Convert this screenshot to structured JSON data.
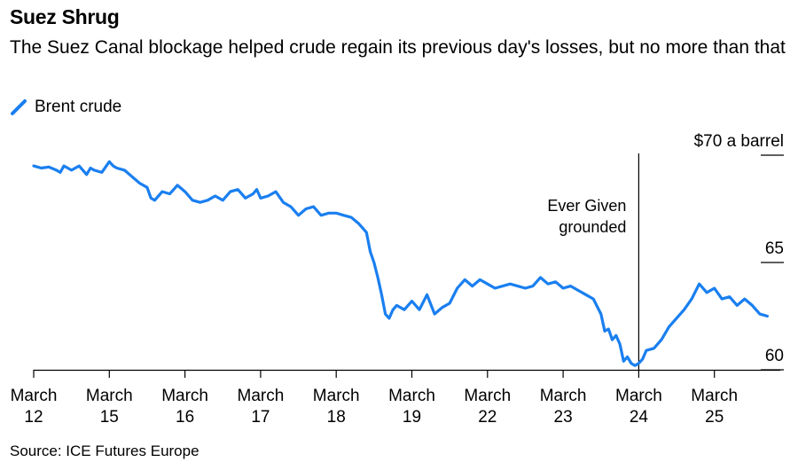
{
  "title": "Suez Shrug",
  "subtitle": "The Suez Canal blockage helped crude regain its previous day's losses, but no more than that",
  "legend": {
    "label": "Brent crude",
    "color": "#1a7ff0"
  },
  "source": "Source: ICE Futures Europe",
  "chart_data": {
    "type": "line",
    "title": "Suez Shrug",
    "series": [
      {
        "name": "Brent crude",
        "color": "#1a7ff0",
        "x": [
          0,
          0.1,
          0.2,
          0.3,
          0.35,
          0.4,
          0.5,
          0.6,
          0.7,
          0.75,
          0.8,
          0.9,
          1.0,
          1.05,
          1.1,
          1.2,
          1.3,
          1.4,
          1.5,
          1.55,
          1.6,
          1.7,
          1.8,
          1.9,
          2.0,
          2.1,
          2.2,
          2.3,
          2.4,
          2.5,
          2.6,
          2.7,
          2.8,
          2.9,
          2.95,
          3.0,
          3.1,
          3.2,
          3.3,
          3.4,
          3.5,
          3.6,
          3.7,
          3.8,
          3.9,
          4.0,
          4.1,
          4.2,
          4.3,
          4.4,
          4.45,
          4.5,
          4.55,
          4.6,
          4.65,
          4.7,
          4.75,
          4.8,
          4.9,
          5.0,
          5.1,
          5.2,
          5.3,
          5.4,
          5.5,
          5.6,
          5.7,
          5.8,
          5.9,
          6.0,
          6.1,
          6.2,
          6.3,
          6.4,
          6.5,
          6.6,
          6.7,
          6.8,
          6.9,
          7.0,
          7.1,
          7.2,
          7.3,
          7.4,
          7.5,
          7.55,
          7.6,
          7.65,
          7.7,
          7.75,
          7.8,
          7.85,
          7.9,
          7.95,
          8.0,
          8.05,
          8.1,
          8.2,
          8.3,
          8.4,
          8.5,
          8.6,
          8.7,
          8.8,
          8.9,
          9.0,
          9.1,
          9.2,
          9.3,
          9.4,
          9.5,
          9.6,
          9.7
        ],
        "y": [
          69.5,
          69.4,
          69.45,
          69.3,
          69.2,
          69.5,
          69.3,
          69.5,
          69.1,
          69.4,
          69.3,
          69.2,
          69.7,
          69.5,
          69.4,
          69.3,
          69.0,
          68.7,
          68.5,
          68.0,
          67.9,
          68.3,
          68.2,
          68.6,
          68.3,
          67.9,
          67.8,
          67.9,
          68.1,
          67.9,
          68.3,
          68.4,
          68.0,
          68.2,
          68.4,
          68.0,
          68.1,
          68.3,
          67.8,
          67.6,
          67.2,
          67.5,
          67.6,
          67.2,
          67.3,
          67.3,
          67.2,
          67.1,
          66.8,
          66.4,
          65.5,
          65.0,
          64.3,
          63.5,
          62.6,
          62.4,
          62.8,
          63.0,
          62.8,
          63.2,
          62.8,
          63.5,
          62.6,
          62.9,
          63.1,
          63.8,
          64.2,
          63.9,
          64.2,
          64.0,
          63.8,
          63.9,
          64.0,
          63.9,
          63.8,
          63.9,
          64.3,
          64.0,
          64.1,
          63.8,
          63.9,
          63.7,
          63.5,
          63.3,
          62.6,
          61.8,
          61.9,
          61.4,
          61.6,
          61.2,
          60.4,
          60.6,
          60.3,
          60.2,
          60.3,
          60.5,
          60.9,
          61.0,
          61.4,
          62.0,
          62.4,
          62.8,
          63.3,
          64.0,
          63.6,
          63.8,
          63.3,
          63.4,
          63.0,
          63.3,
          63.0,
          62.6,
          62.5
        ],
        "values_note": ""
      }
    ],
    "x_tick_labels": [
      {
        "top": "March",
        "bottom": "12"
      },
      {
        "top": "March",
        "bottom": "15"
      },
      {
        "top": "March",
        "bottom": "16"
      },
      {
        "top": "March",
        "bottom": "17"
      },
      {
        "top": "March",
        "bottom": "18"
      },
      {
        "top": "March",
        "bottom": "19"
      },
      {
        "top": "March",
        "bottom": "22"
      },
      {
        "top": "March",
        "bottom": "23"
      },
      {
        "top": "March",
        "bottom": "24"
      },
      {
        "top": "March",
        "bottom": "25"
      }
    ],
    "y_ticks": [
      {
        "value": 70,
        "label": "$70 a barrel"
      },
      {
        "value": 65,
        "label": "65"
      },
      {
        "value": 60,
        "label": "60"
      }
    ],
    "ylim": [
      59.6,
      70.2
    ],
    "xlim": [
      0,
      10
    ],
    "annotation": {
      "x": 8.0,
      "lines": [
        "Ever Given",
        "grounded"
      ]
    },
    "grid": false,
    "legend_position": "top-left"
  }
}
